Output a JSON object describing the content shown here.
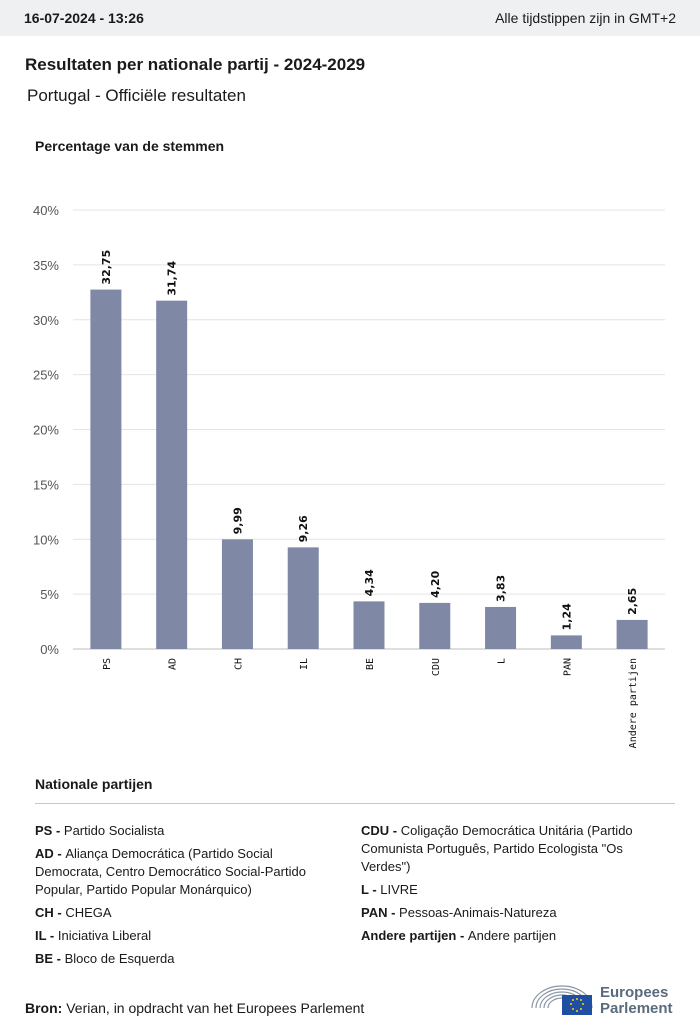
{
  "header": {
    "timestamp": "16-07-2024 - 13:26",
    "timezone_note": "Alle tijdstippen zijn in GMT+2"
  },
  "title": "Resultaten per nationale partij - 2024-2029",
  "subtitle": "Portugal - Officiële resultaten",
  "chart_data": {
    "type": "bar",
    "ylabel": "Percentage van de stemmen",
    "categories": [
      "PS",
      "AD",
      "CH",
      "IL",
      "BE",
      "CDU",
      "L",
      "PAN",
      "Andere partijen"
    ],
    "values": [
      32.75,
      31.74,
      9.99,
      9.26,
      4.34,
      4.2,
      3.83,
      1.24,
      2.65
    ],
    "data_labels": [
      "32,75",
      "31,74",
      "9,99",
      "9,26",
      "4,34",
      "4,20",
      "3,83",
      "1,24",
      "2,65"
    ],
    "ylim": [
      0,
      40
    ],
    "yticks": [
      "0%",
      "5%",
      "10%",
      "15%",
      "20%",
      "25%",
      "30%",
      "35%",
      "40%"
    ],
    "grid": true,
    "bar_color": "#7f88a4"
  },
  "legend": {
    "title": "Nationale partijen",
    "left": [
      {
        "abbr": "PS -",
        "name": "Partido Socialista"
      },
      {
        "abbr": "AD -",
        "name": "Aliança Democrática (Partido Social Democrata, Centro Democrático Social-Partido Popular, Partido Popular Monárquico)"
      },
      {
        "abbr": "CH -",
        "name": "CHEGA"
      },
      {
        "abbr": "IL -",
        "name": "Iniciativa Liberal"
      },
      {
        "abbr": "BE -",
        "name": "Bloco de Esquerda"
      }
    ],
    "right": [
      {
        "abbr": "CDU -",
        "name": "Coligação Democrática Unitária (Partido Comunista Português, Partido Ecologista \"Os Verdes\")"
      },
      {
        "abbr": "L -",
        "name": "LIVRE"
      },
      {
        "abbr": "PAN -",
        "name": "Pessoas-Animais-Natureza"
      },
      {
        "abbr": "Andere partijen -",
        "name": "Andere partijen"
      }
    ]
  },
  "source": {
    "label": "Bron:",
    "text": "Verian, in opdracht van het Europees Parlement"
  },
  "logo": {
    "line1": "Europees",
    "line2": "Parlement",
    "icon": "european-parliament-logo-icon"
  }
}
